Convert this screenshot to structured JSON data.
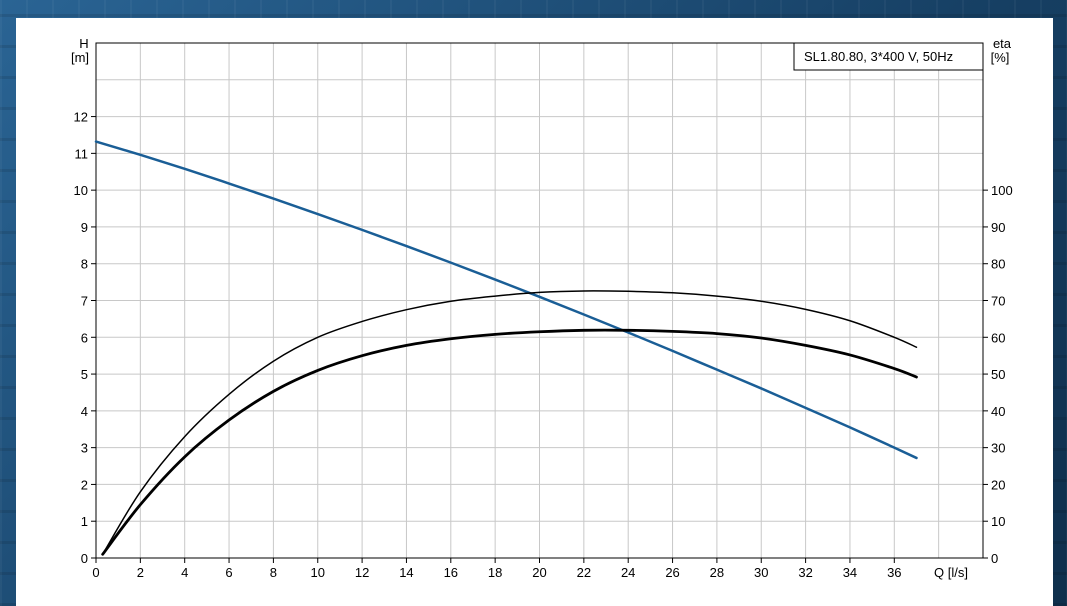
{
  "chart_data": {
    "type": "line",
    "legend_text": "SL1.80.80, 3*400 V, 50Hz",
    "left_axis_label": {
      "line1": "H",
      "line2": "[m]"
    },
    "right_axis_label": {
      "line1": "eta",
      "line2": "[%]"
    },
    "xlabel": "Q [l/s]",
    "xlim": [
      0,
      40
    ],
    "ylim_left": [
      0,
      14
    ],
    "ylim_right": [
      0,
      140
    ],
    "x_ticks": [
      0,
      2,
      4,
      6,
      8,
      10,
      12,
      14,
      16,
      18,
      20,
      22,
      24,
      26,
      28,
      30,
      32,
      34,
      36
    ],
    "y_ticks_left": [
      0,
      1,
      2,
      3,
      4,
      5,
      6,
      7,
      8,
      9,
      10,
      11,
      12
    ],
    "y_ticks_right": [
      0,
      10,
      20,
      30,
      40,
      50,
      60,
      70,
      80,
      90,
      100
    ],
    "grid": true,
    "legend_position": "top-right",
    "series": [
      {
        "axis": "left",
        "color": "#1a5e96",
        "width": 2.5,
        "x": [
          0,
          2,
          4,
          6,
          8,
          10,
          12,
          14,
          16,
          18,
          20,
          22,
          24,
          26,
          28,
          30,
          32,
          34,
          36,
          37
        ],
        "y": [
          11.32,
          10.96,
          10.58,
          10.18,
          9.77,
          9.35,
          8.92,
          8.48,
          8.03,
          7.57,
          7.1,
          6.62,
          6.13,
          5.63,
          5.12,
          4.61,
          4.08,
          3.55,
          3.0,
          2.72
        ]
      },
      {
        "axis": "right",
        "color": "#000000",
        "width": 1.5,
        "x": [
          0.3,
          2,
          4,
          6,
          8,
          10,
          12,
          14,
          16,
          18,
          20,
          22,
          24,
          26,
          28,
          30,
          32,
          34,
          36,
          37
        ],
        "y": [
          1,
          18,
          33,
          44.5,
          53.5,
          60,
          64.3,
          67.5,
          69.8,
          71.2,
          72.2,
          72.6,
          72.5,
          72.1,
          71.2,
          69.8,
          67.6,
          64.5,
          60,
          57.3
        ]
      },
      {
        "axis": "right",
        "color": "#000000",
        "width": 2.8,
        "x": [
          0.3,
          2,
          4,
          6,
          8,
          10,
          12,
          14,
          16,
          18,
          20,
          22,
          24,
          26,
          28,
          30,
          32,
          34,
          36,
          37
        ],
        "y": [
          1,
          14.5,
          27.5,
          37.5,
          45.3,
          51,
          55,
          57.8,
          59.6,
          60.8,
          61.5,
          61.9,
          61.9,
          61.6,
          61,
          59.8,
          57.8,
          55.2,
          51.5,
          49.2
        ]
      }
    ]
  }
}
